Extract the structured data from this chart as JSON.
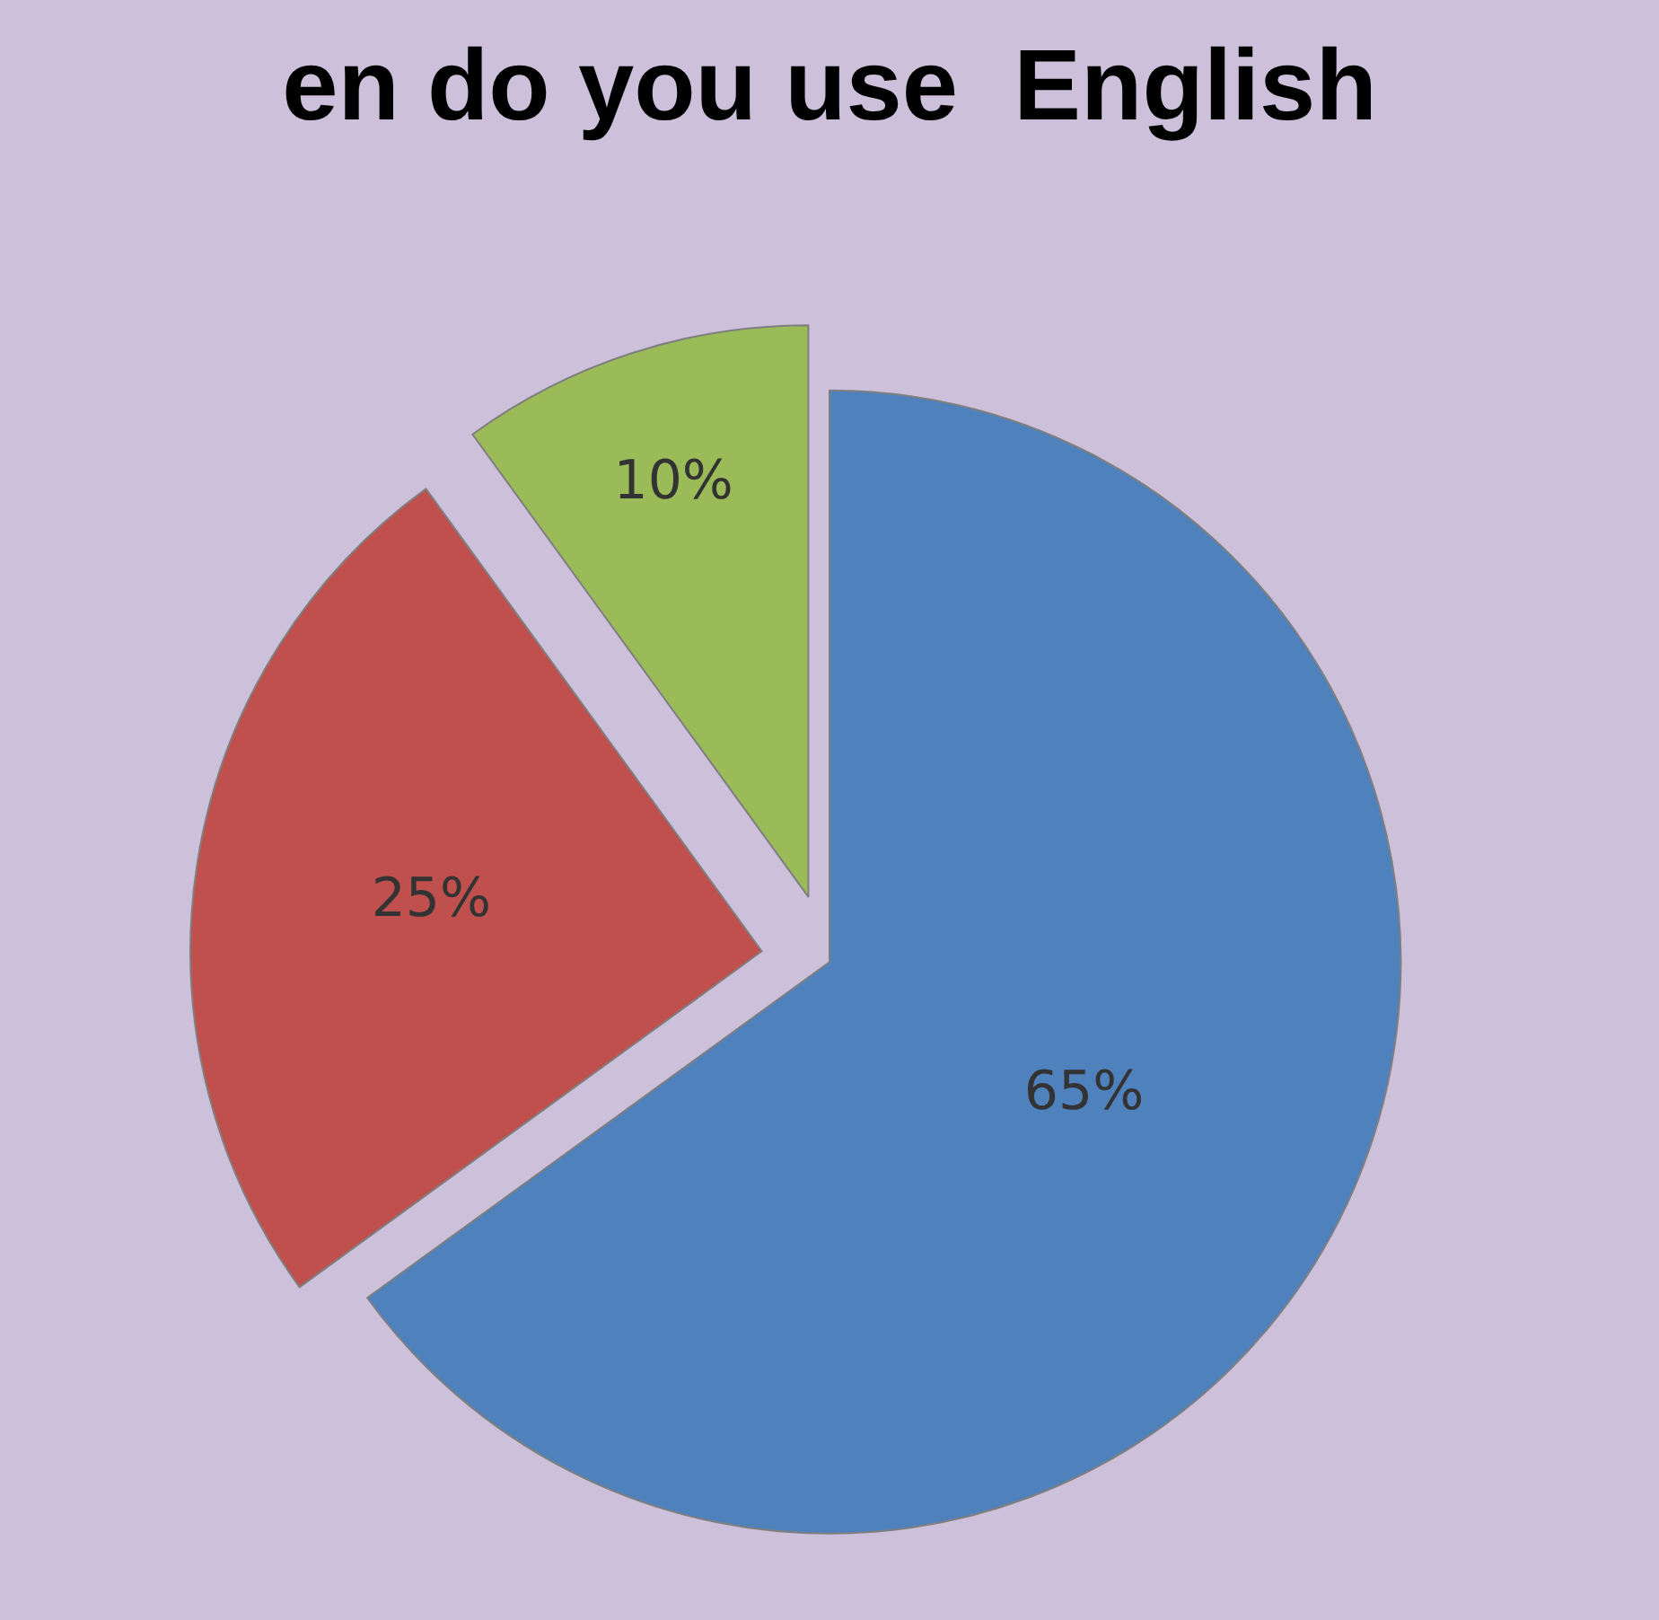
{
  "chart_data": {
    "type": "pie",
    "title": "en do you use  English",
    "categories": [
      null,
      null,
      null
    ],
    "values": [
      65,
      25,
      10
    ],
    "colors": [
      "#4f81bd",
      "#c0504d",
      "#9bbb59"
    ],
    "value_labels": [
      "65%",
      "25%",
      "10%"
    ]
  }
}
